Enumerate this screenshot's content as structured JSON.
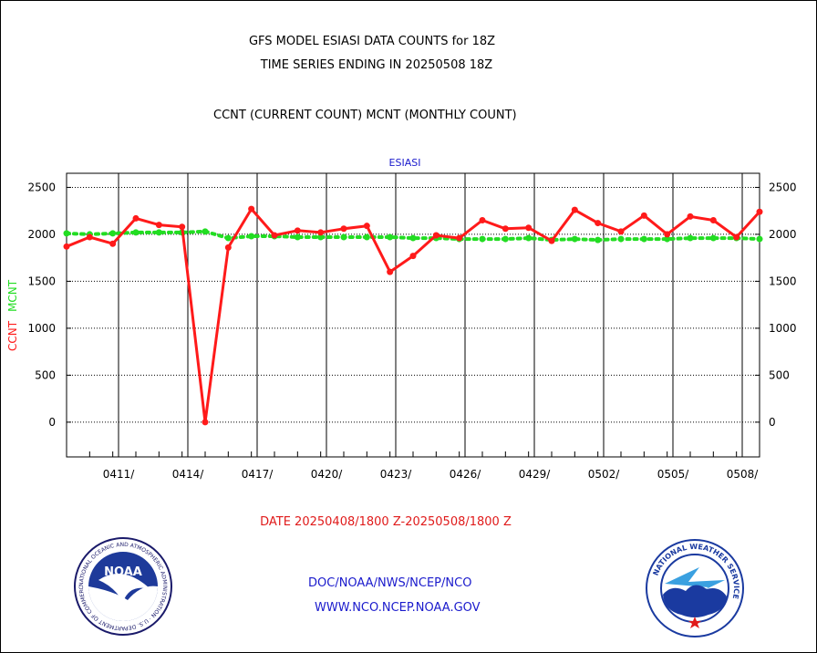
{
  "header": {
    "title_line1": "GFS MODEL ESIASI DATA COUNTS for 18Z",
    "title_line2": "TIME SERIES ENDING IN 20250508 18Z",
    "subtitle": "CCNT (CURRENT COUNT) MCNT (MONTHLY COUNT)",
    "panel_title": "ESIASI"
  },
  "axis": {
    "y_label_ccnt": "CCNT",
    "y_label_mcnt": "MCNT",
    "x_ticks": [
      "0411/",
      "0414/",
      "0417/",
      "0420/",
      "0423/",
      "0426/",
      "0429/",
      "0502/",
      "0505/",
      "0508/"
    ],
    "y_ticks": [
      "2500",
      "2000",
      "1500",
      "1000",
      "500",
      "0"
    ]
  },
  "footer": {
    "date_range": "DATE 20250408/1800 Z-20250508/1800 Z",
    "link1": "DOC/NOAA/NWS/NCEP/NCO",
    "link2": "WWW.NCO.NCEP.NOAA.GOV",
    "noaa_logo_text": "NOAA",
    "noaa_ring_text": "NATIONAL OCEANIC AND ATMOSPHERIC ADMINISTRATION · U.S. DEPARTMENT OF COMMERCE ·",
    "nws_ring_text": "NATIONAL WEATHER SERVICE"
  },
  "colors": {
    "ccnt": "#ff1a1a",
    "mcnt": "#22dd22",
    "text_blue": "#1a1acc"
  },
  "chart_data": {
    "type": "line",
    "title": "ESIASI",
    "x_label": "DATE 20250408/1800 Z-20250508/1800 Z",
    "y_label": "CCNT  MCNT",
    "ylim": [
      -370,
      2650
    ],
    "xlim": [
      "2025-04-08",
      "2025-05-08"
    ],
    "grid": true,
    "x": [
      "2025-04-08",
      "2025-04-09",
      "2025-04-10",
      "2025-04-11",
      "2025-04-12",
      "2025-04-13",
      "2025-04-14",
      "2025-04-15",
      "2025-04-16",
      "2025-04-17",
      "2025-04-18",
      "2025-04-19",
      "2025-04-20",
      "2025-04-21",
      "2025-04-22",
      "2025-04-23",
      "2025-04-24",
      "2025-04-25",
      "2025-04-26",
      "2025-04-27",
      "2025-04-28",
      "2025-04-29",
      "2025-04-30",
      "2025-05-01",
      "2025-05-02",
      "2025-05-03",
      "2025-05-04",
      "2025-05-05",
      "2025-05-06",
      "2025-05-07",
      "2025-05-08"
    ],
    "series": [
      {
        "name": "CCNT",
        "style": "solid",
        "values": [
          1870,
          1970,
          1900,
          2170,
          2100,
          2080,
          0,
          1860,
          2270,
          1990,
          2040,
          2020,
          2060,
          2090,
          1600,
          1770,
          1990,
          1960,
          2150,
          2060,
          2070,
          1930,
          2260,
          2120,
          2030,
          2200,
          2000,
          2190,
          2150,
          1970,
          2240
        ]
      },
      {
        "name": "MCNT",
        "style": "dotted",
        "values": [
          2010,
          2000,
          2010,
          2020,
          2020,
          2020,
          2030,
          1960,
          1980,
          1980,
          1970,
          1970,
          1970,
          1970,
          1970,
          1960,
          1960,
          1950,
          1950,
          1950,
          1960,
          1940,
          1950,
          1940,
          1950,
          1950,
          1950,
          1960,
          1960,
          1960,
          1950
        ]
      }
    ]
  }
}
